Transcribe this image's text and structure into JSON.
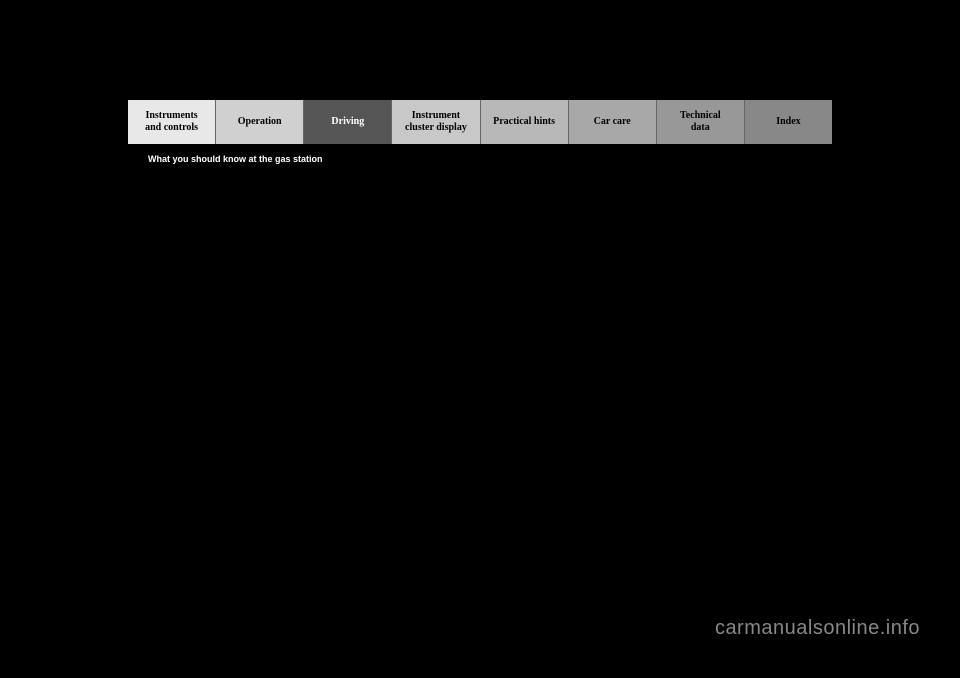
{
  "tabs": [
    {
      "label": "Instruments\nand controls",
      "active": false
    },
    {
      "label": "Operation",
      "active": false
    },
    {
      "label": "Driving",
      "active": true
    },
    {
      "label": "Instrument\ncluster display",
      "active": false
    },
    {
      "label": "Practical hints",
      "active": false
    },
    {
      "label": "Car care",
      "active": false
    },
    {
      "label": "Technical\ndata",
      "active": false
    },
    {
      "label": "Index",
      "active": false
    }
  ],
  "subtitle": "What you should know at the gas station",
  "watermark": "carmanualsonline.info",
  "colors": {
    "background": "#000000",
    "tab_inactive_bg": "#d0d0d0",
    "tab_active_bg": "#555555",
    "tab_text": "#000000",
    "tab_active_text": "#ffffff",
    "watermark_color": "#888888"
  }
}
